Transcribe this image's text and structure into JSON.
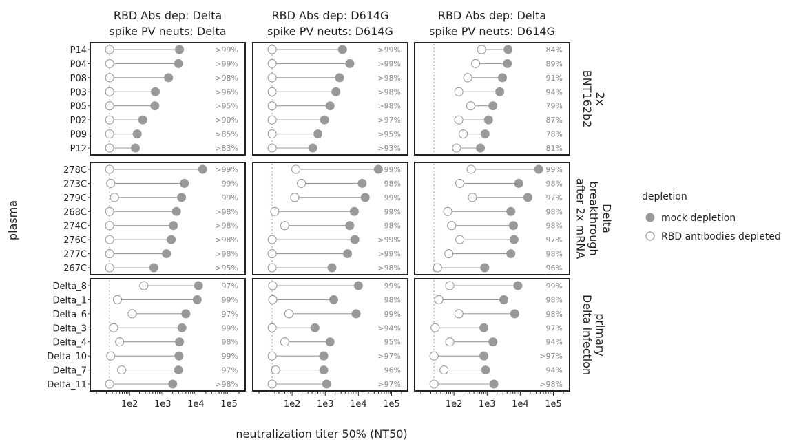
{
  "chart_data": {
    "type": "scatter",
    "subtype": "dumbbell",
    "xlabel": "neutralization titer 50% (NT50)",
    "ylabel": "plasma",
    "x_scale": "log",
    "xlim": [
      10,
      200000
    ],
    "x_ticks": [
      100,
      1000,
      10000,
      100000
    ],
    "x_tick_labels": [
      "1e2",
      "1e3",
      "1e4",
      "1e5"
    ],
    "limit_of_detection": 25,
    "legend": {
      "title": "depletion",
      "entries": [
        {
          "label": "mock depletion",
          "marker": "filled",
          "color": "#999999"
        },
        {
          "label": "RBD antibodies depleted",
          "marker": "open",
          "color": "#999999"
        }
      ]
    },
    "columns": [
      {
        "title_line1": "RBD Abs dep: Delta",
        "title_line2": "spike PV neuts: Delta"
      },
      {
        "title_line1": "RBD Abs dep: D614G",
        "title_line2": "spike PV neuts: D614G"
      },
      {
        "title_line1": "RBD Abs dep: Delta",
        "title_line2": "spike PV neuts: D614G"
      }
    ],
    "rows": [
      {
        "title_lines": [
          "2x",
          "BNT162b2"
        ],
        "sera": [
          "P14",
          "P04",
          "P08",
          "P03",
          "P05",
          "P02",
          "P09",
          "P12"
        ],
        "panels": [
          {
            "mock": [
              3200,
              3000,
              1500,
              600,
              580,
              250,
              170,
              150
            ],
            "depleted": [
              25,
              25,
              25,
              25,
              25,
              25,
              25,
              25
            ],
            "pct": [
              ">99%",
              ">99%",
              ">98%",
              ">96%",
              ">95%",
              ">90%",
              ">85%",
              ">83%"
            ]
          },
          {
            "mock": [
              3300,
              5500,
              2700,
              2100,
              1400,
              950,
              600,
              420
            ],
            "depleted": [
              25,
              25,
              25,
              25,
              25,
              25,
              25,
              25
            ],
            "pct": [
              ">99%",
              ">99%",
              ">98%",
              ">98%",
              ">98%",
              ">97%",
              ">95%",
              ">93%"
            ]
          },
          {
            "mock": [
              4300,
              4100,
              2900,
              2400,
              1500,
              1100,
              870,
              630
            ],
            "depleted": [
              680,
              450,
              260,
              140,
              320,
              140,
              190,
              120
            ],
            "pct": [
              "84%",
              "89%",
              "91%",
              "94%",
              "79%",
              "87%",
              "78%",
              "81%"
            ]
          }
        ]
      },
      {
        "title_lines": [
          "Delta",
          "breakthrough",
          "after 2x mRNA"
        ],
        "sera": [
          "278C",
          "273C",
          "279C",
          "268C",
          "274C",
          "276C",
          "277C",
          "267C"
        ],
        "panels": [
          {
            "mock": [
              16000,
              4500,
              3700,
              2600,
              2100,
              1800,
              1300,
              540
            ],
            "depleted": [
              25,
              27,
              35,
              25,
              25,
              25,
              25,
              25
            ],
            "pct": [
              ">99%",
              "99%",
              "99%",
              ">98%",
              ">98%",
              ">98%",
              ">98%",
              ">95%"
            ]
          },
          {
            "mock": [
              40000,
              13000,
              16000,
              7500,
              5500,
              7800,
              4700,
              1600
            ],
            "depleted": [
              130,
              190,
              120,
              30,
              60,
              25,
              25,
              25
            ],
            "pct": [
              "99%",
              "98%",
              "99%",
              "99%",
              "98%",
              ">99%",
              ">99%",
              ">98%"
            ]
          },
          {
            "mock": [
              36000,
              9000,
              17000,
              5200,
              6200,
              6500,
              5200,
              850
            ],
            "depleted": [
              330,
              150,
              360,
              65,
              85,
              150,
              70,
              32
            ],
            "pct": [
              "99%",
              "98%",
              "97%",
              "98%",
              "98%",
              "97%",
              "98%",
              "96%"
            ]
          }
        ]
      },
      {
        "title_lines": [
          "primary",
          "Delta infection"
        ],
        "sera": [
          "Delta_8",
          "Delta_1",
          "Delta_6",
          "Delta_3",
          "Delta_4",
          "Delta_10",
          "Delta_7",
          "Delta_11"
        ],
        "panels": [
          {
            "mock": [
              12000,
              11000,
              5000,
              3800,
              3200,
              3100,
              3000,
              2000
            ],
            "depleted": [
              270,
              43,
              120,
              33,
              50,
              27,
              58,
              25
            ],
            "pct": [
              "97%",
              "99%",
              "97%",
              "99%",
              "98%",
              "99%",
              "97%",
              ">98%"
            ]
          },
          {
            "mock": [
              10000,
              1800,
              8500,
              490,
              1400,
              900,
              900,
              1100
            ],
            "depleted": [
              26,
              26,
              80,
              25,
              60,
              25,
              32,
              25
            ],
            "pct": [
              "99%",
              "98%",
              "99%",
              ">94%",
              "95%",
              ">97%",
              "96%",
              ">97%"
            ]
          },
          {
            "mock": [
              8500,
              3200,
              6800,
              800,
              1500,
              800,
              900,
              1600
            ],
            "depleted": [
              75,
              35,
              140,
              27,
              75,
              25,
              50,
              25
            ],
            "pct": [
              "99%",
              "98%",
              "98%",
              "97%",
              "94%",
              ">97%",
              "94%",
              ">98%"
            ]
          }
        ]
      }
    ]
  }
}
